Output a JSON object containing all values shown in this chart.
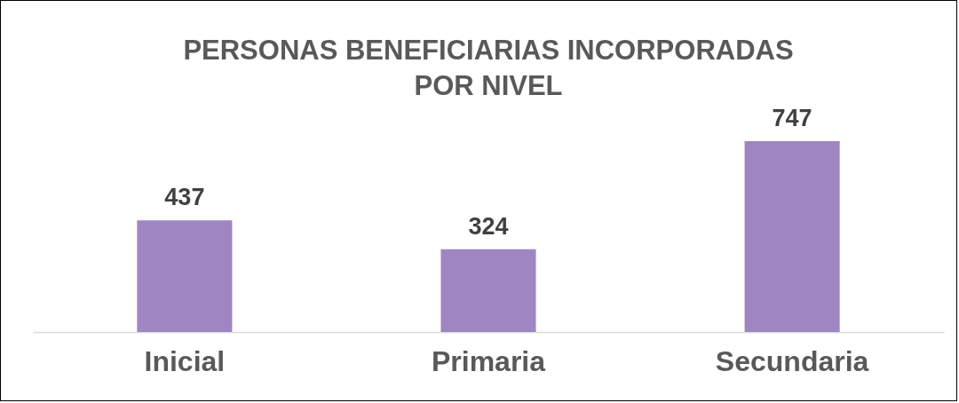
{
  "chart_data": {
    "type": "bar",
    "title": "PERSONAS BENEFICIARIAS INCORPORADAS\nPOR NIVEL",
    "categories": [
      "Inicial",
      "Primaria",
      "Secundaria"
    ],
    "values": [
      437,
      324,
      747
    ],
    "color": "#9e86c2",
    "data_labels": true
  }
}
